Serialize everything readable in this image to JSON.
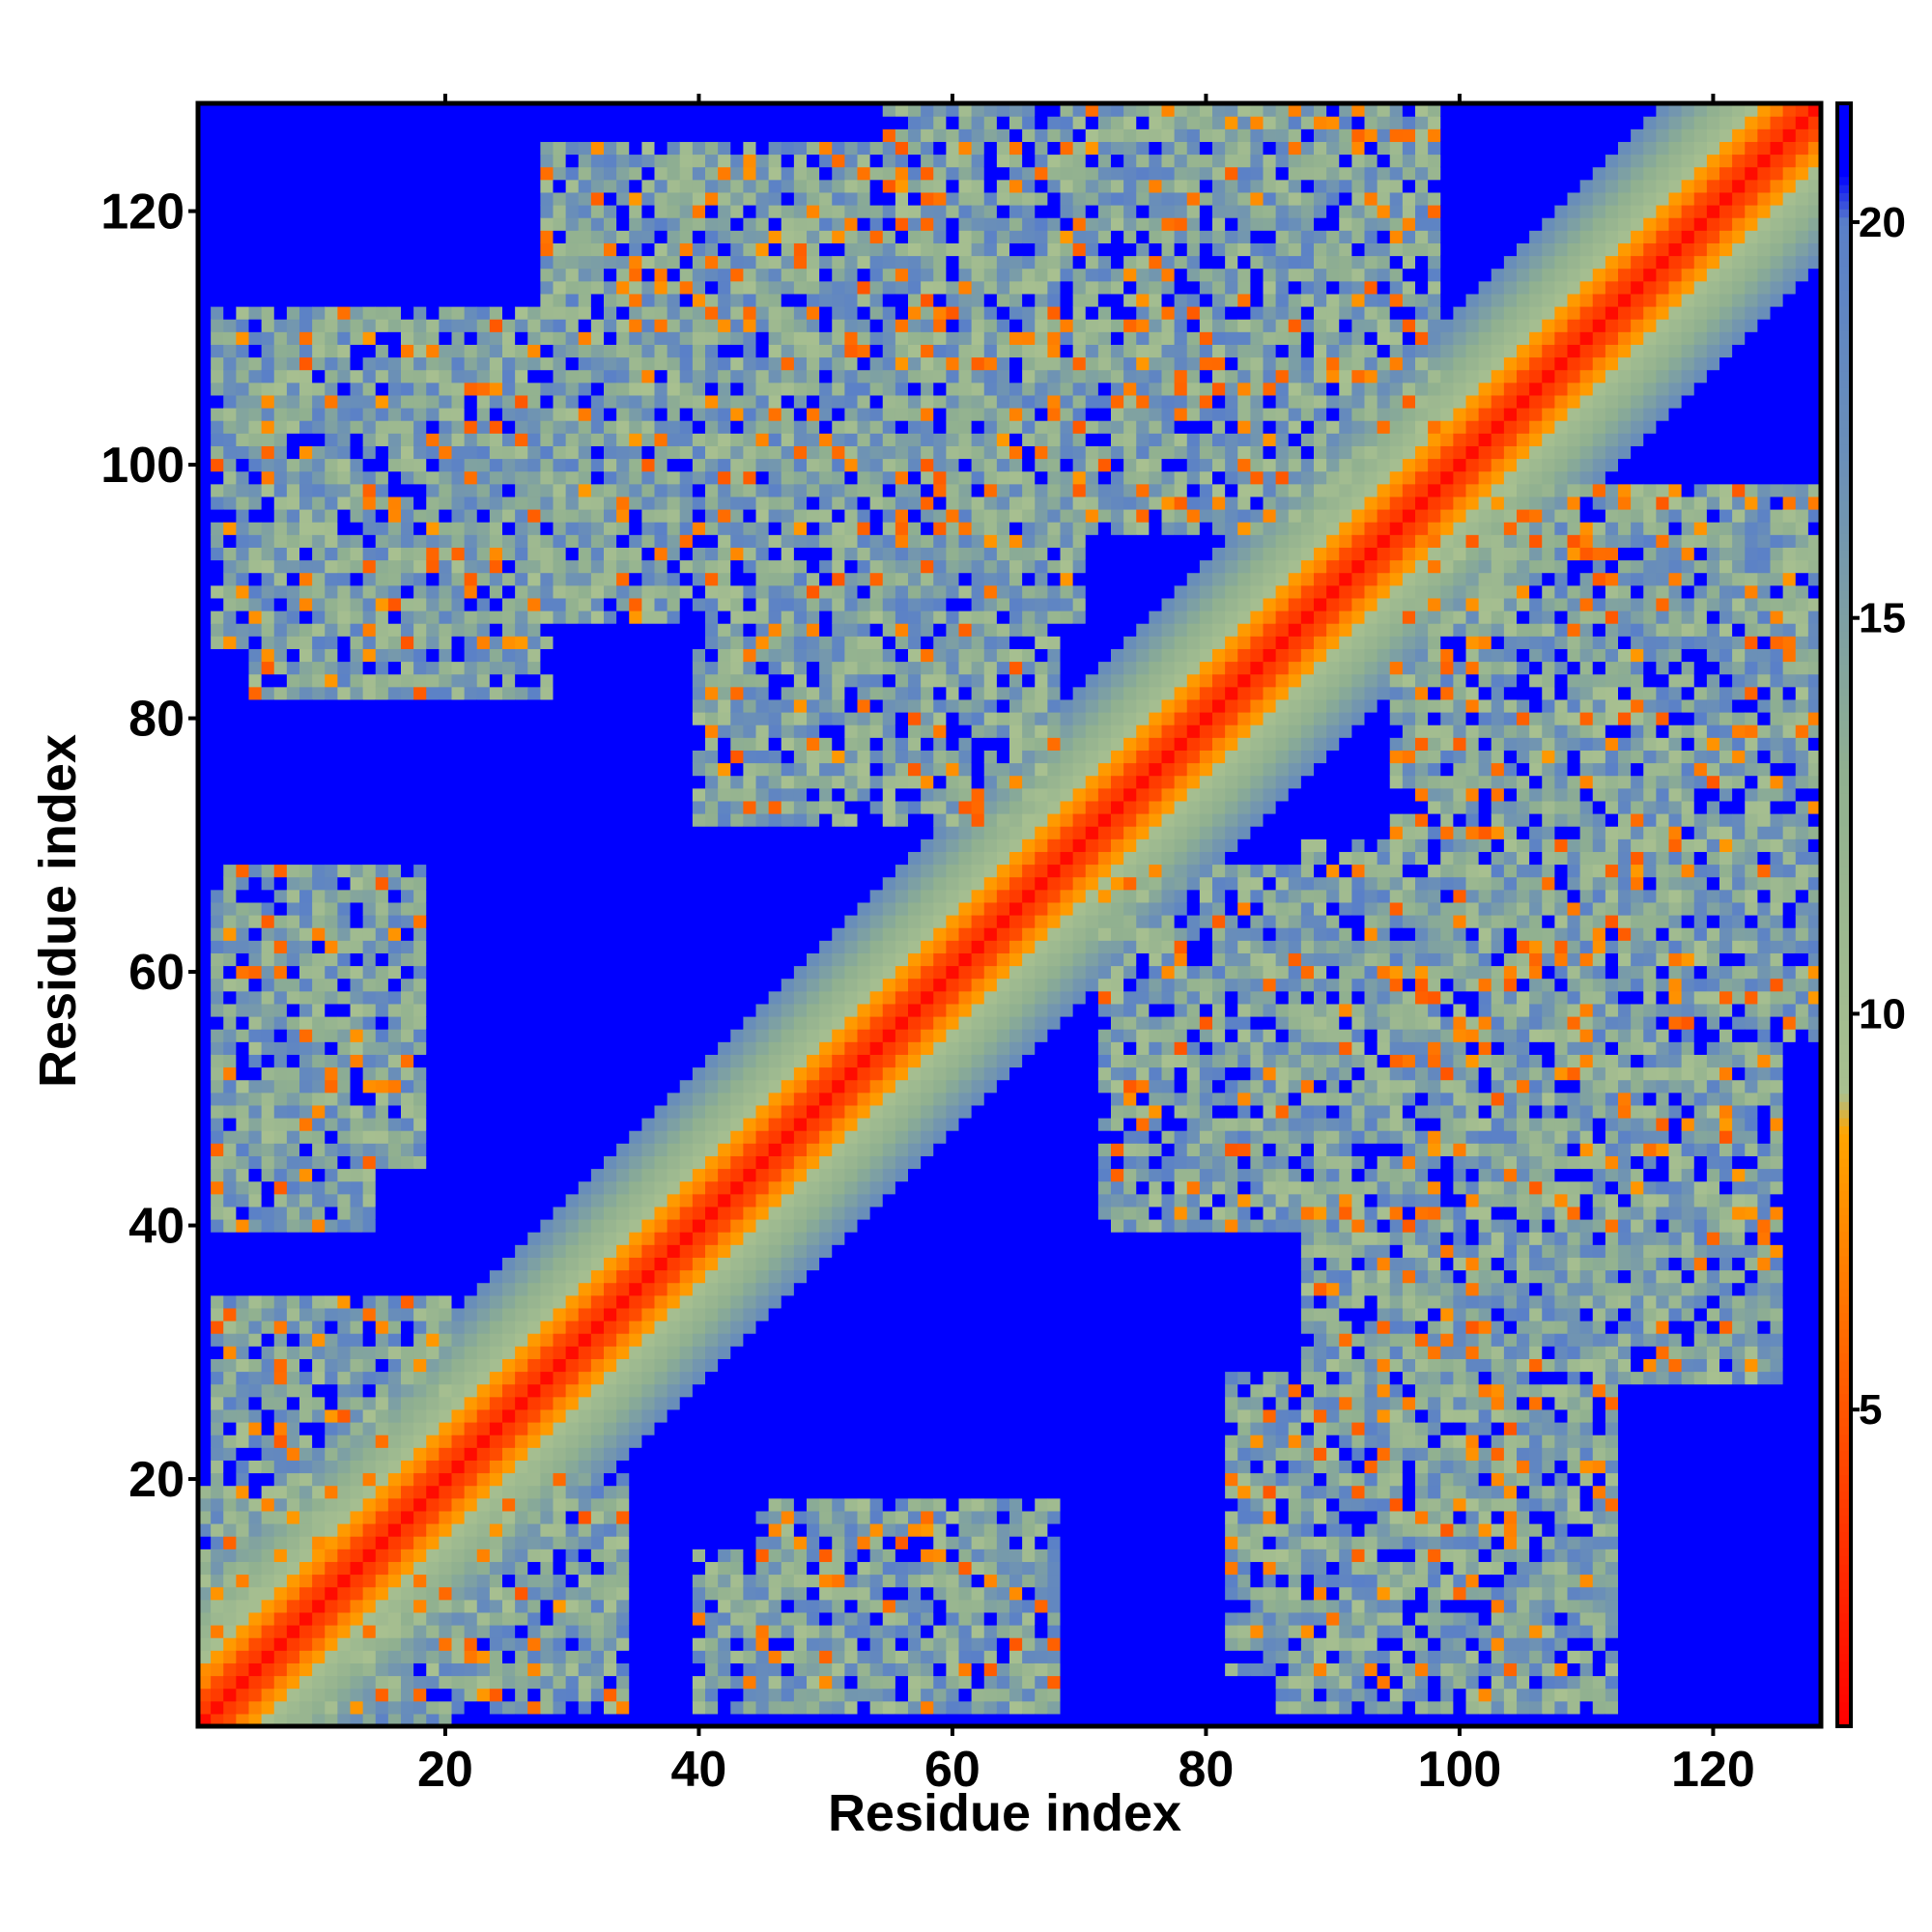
{
  "chart_data": {
    "type": "heatmap",
    "title": "",
    "xlabel": "Residue index",
    "ylabel": "Residue index",
    "n_residues": 128,
    "xlim": [
      1,
      128
    ],
    "ylim": [
      1,
      128
    ],
    "x_ticks": [
      20,
      40,
      60,
      80,
      100,
      120
    ],
    "y_ticks": [
      20,
      40,
      60,
      80,
      100,
      120
    ],
    "colorbar": {
      "ticks": [
        5,
        10,
        15,
        20
      ],
      "range": [
        1,
        21.5
      ],
      "placement": "right",
      "stops": [
        {
          "value": 1,
          "color": "#ff0000"
        },
        {
          "value": 5,
          "color": "#ff5500"
        },
        {
          "value": 8.5,
          "color": "#ffa500"
        },
        {
          "value": 9.0,
          "color": "#a8c090"
        },
        {
          "value": 13,
          "color": "#90b090"
        },
        {
          "value": 17,
          "color": "#6a8fb8"
        },
        {
          "value": 20,
          "color": "#5a80c8"
        },
        {
          "value": 20.6,
          "color": "#0000ff"
        },
        {
          "value": 21.5,
          "color": "#0000ff"
        }
      ]
    },
    "cutoff": 20,
    "structure_elements": [
      {
        "kind": "diagonal-band",
        "description": "contact distance grows with sequence separation |i-j|"
      },
      {
        "kind": "contact-region",
        "i_range": [
          2,
          24
        ],
        "j_range": [
          86,
          112
        ]
      },
      {
        "kind": "contact-region",
        "i_range": [
          2,
          18
        ],
        "j_range": [
          45,
          68
        ]
      },
      {
        "kind": "contact-region",
        "i_range": [
          2,
          20
        ],
        "j_range": [
          1,
          34
        ]
      },
      {
        "kind": "contact-region",
        "i_range": [
          28,
          70
        ],
        "j_range": [
          88,
          125
        ]
      },
      {
        "kind": "contact-region",
        "i_range": [
          55,
          90
        ],
        "j_range": [
          96,
          128
        ]
      },
      {
        "kind": "contact-region",
        "i_range": [
          95,
          128
        ],
        "j_range": [
          55,
          98
        ]
      },
      {
        "kind": "contact-region",
        "i_range": [
          72,
          108
        ],
        "j_range": [
          40,
          68
        ]
      },
      {
        "kind": "contact-region",
        "i_range": [
          40,
          62
        ],
        "j_range": [
          2,
          14
        ]
      },
      {
        "kind": "contact-region",
        "i_range": [
          82,
          112
        ],
        "j_range": [
          5,
          28
        ]
      }
    ]
  }
}
